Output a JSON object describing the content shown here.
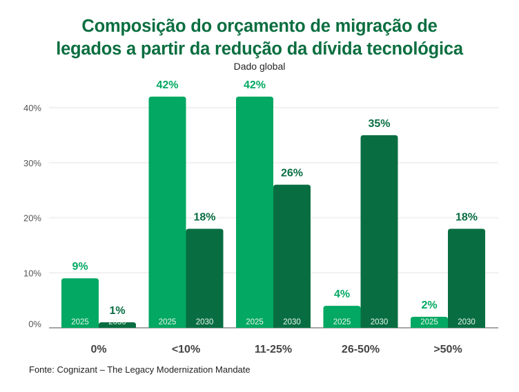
{
  "header": {
    "title_line1": "Composição do orçamento de migração de",
    "title_line2": "legados a partir da redução da dívida tecnológica",
    "subtitle": "Dado global"
  },
  "footer": {
    "source": "Fonte: Cognizant – The Legacy Modernization Mandate"
  },
  "colors": {
    "title": "#0b6e40",
    "series_2025": "#03a862",
    "series_2030": "#086e42",
    "grid": "#f0f0f0",
    "axis": "#a6a6a6"
  },
  "chart_data": {
    "type": "bar",
    "title": "Composição do orçamento de migração de legados a partir da redução da dívida tecnológica",
    "subtitle": "Dado global",
    "xlabel": "",
    "ylabel": "",
    "categories": [
      "0%",
      "<10%",
      "11-25%",
      "26-50%",
      ">50%"
    ],
    "series": [
      {
        "name": "2025",
        "values": [
          9,
          42,
          42,
          4,
          2
        ],
        "labels": [
          "9%",
          "42%",
          "42%",
          "4%",
          "2%"
        ]
      },
      {
        "name": "2030",
        "values": [
          1,
          18,
          26,
          35,
          18
        ],
        "labels": [
          "1%",
          "18%",
          "26%",
          "35%",
          "18%"
        ]
      }
    ],
    "ylim": [
      0,
      40
    ],
    "yticks": [
      0,
      10,
      20,
      30,
      40
    ],
    "ytick_labels": [
      "0%",
      "10%",
      "20%",
      "30%",
      "40%"
    ],
    "grid": true,
    "legend": "none (year labels inside bars)"
  }
}
